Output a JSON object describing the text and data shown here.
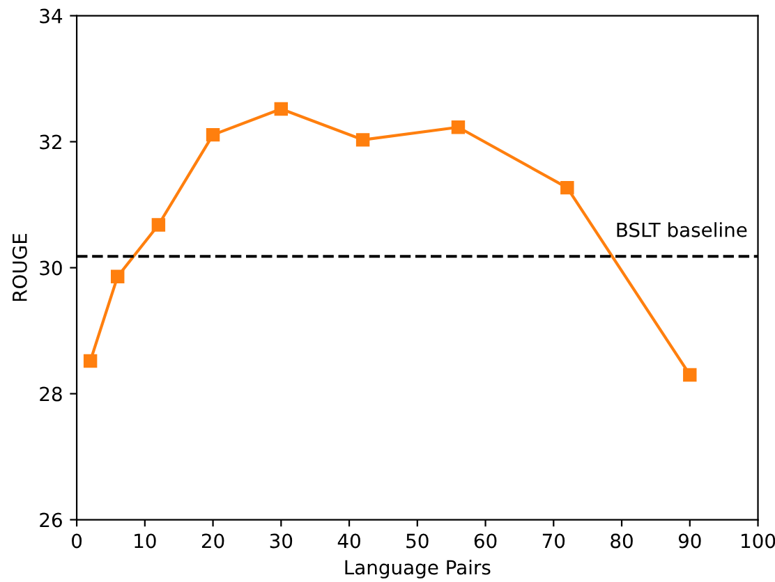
{
  "chart_data": {
    "type": "line",
    "xlabel": "Language Pairs",
    "ylabel": "ROUGE",
    "x": [
      2,
      6,
      12,
      20,
      30,
      42,
      56,
      72,
      90
    ],
    "series": [
      {
        "color": "#ff7f0e",
        "values": [
          28.52,
          29.86,
          30.68,
          32.11,
          32.52,
          32.03,
          32.23,
          31.27,
          28.3
        ]
      }
    ],
    "marker": "square",
    "line_style": "solid",
    "xlim": [
      0,
      100
    ],
    "xticks": [
      0,
      10,
      20,
      30,
      40,
      50,
      60,
      70,
      80,
      90,
      100
    ],
    "ylim": [
      26,
      34
    ],
    "yticks": [
      26,
      28,
      30,
      32,
      34
    ],
    "ref_lines": [
      {
        "axis": "y",
        "value": 30.18,
        "label": "BSLT baseline",
        "color": "#000000",
        "line_style": "dashed"
      }
    ],
    "grid": false
  }
}
